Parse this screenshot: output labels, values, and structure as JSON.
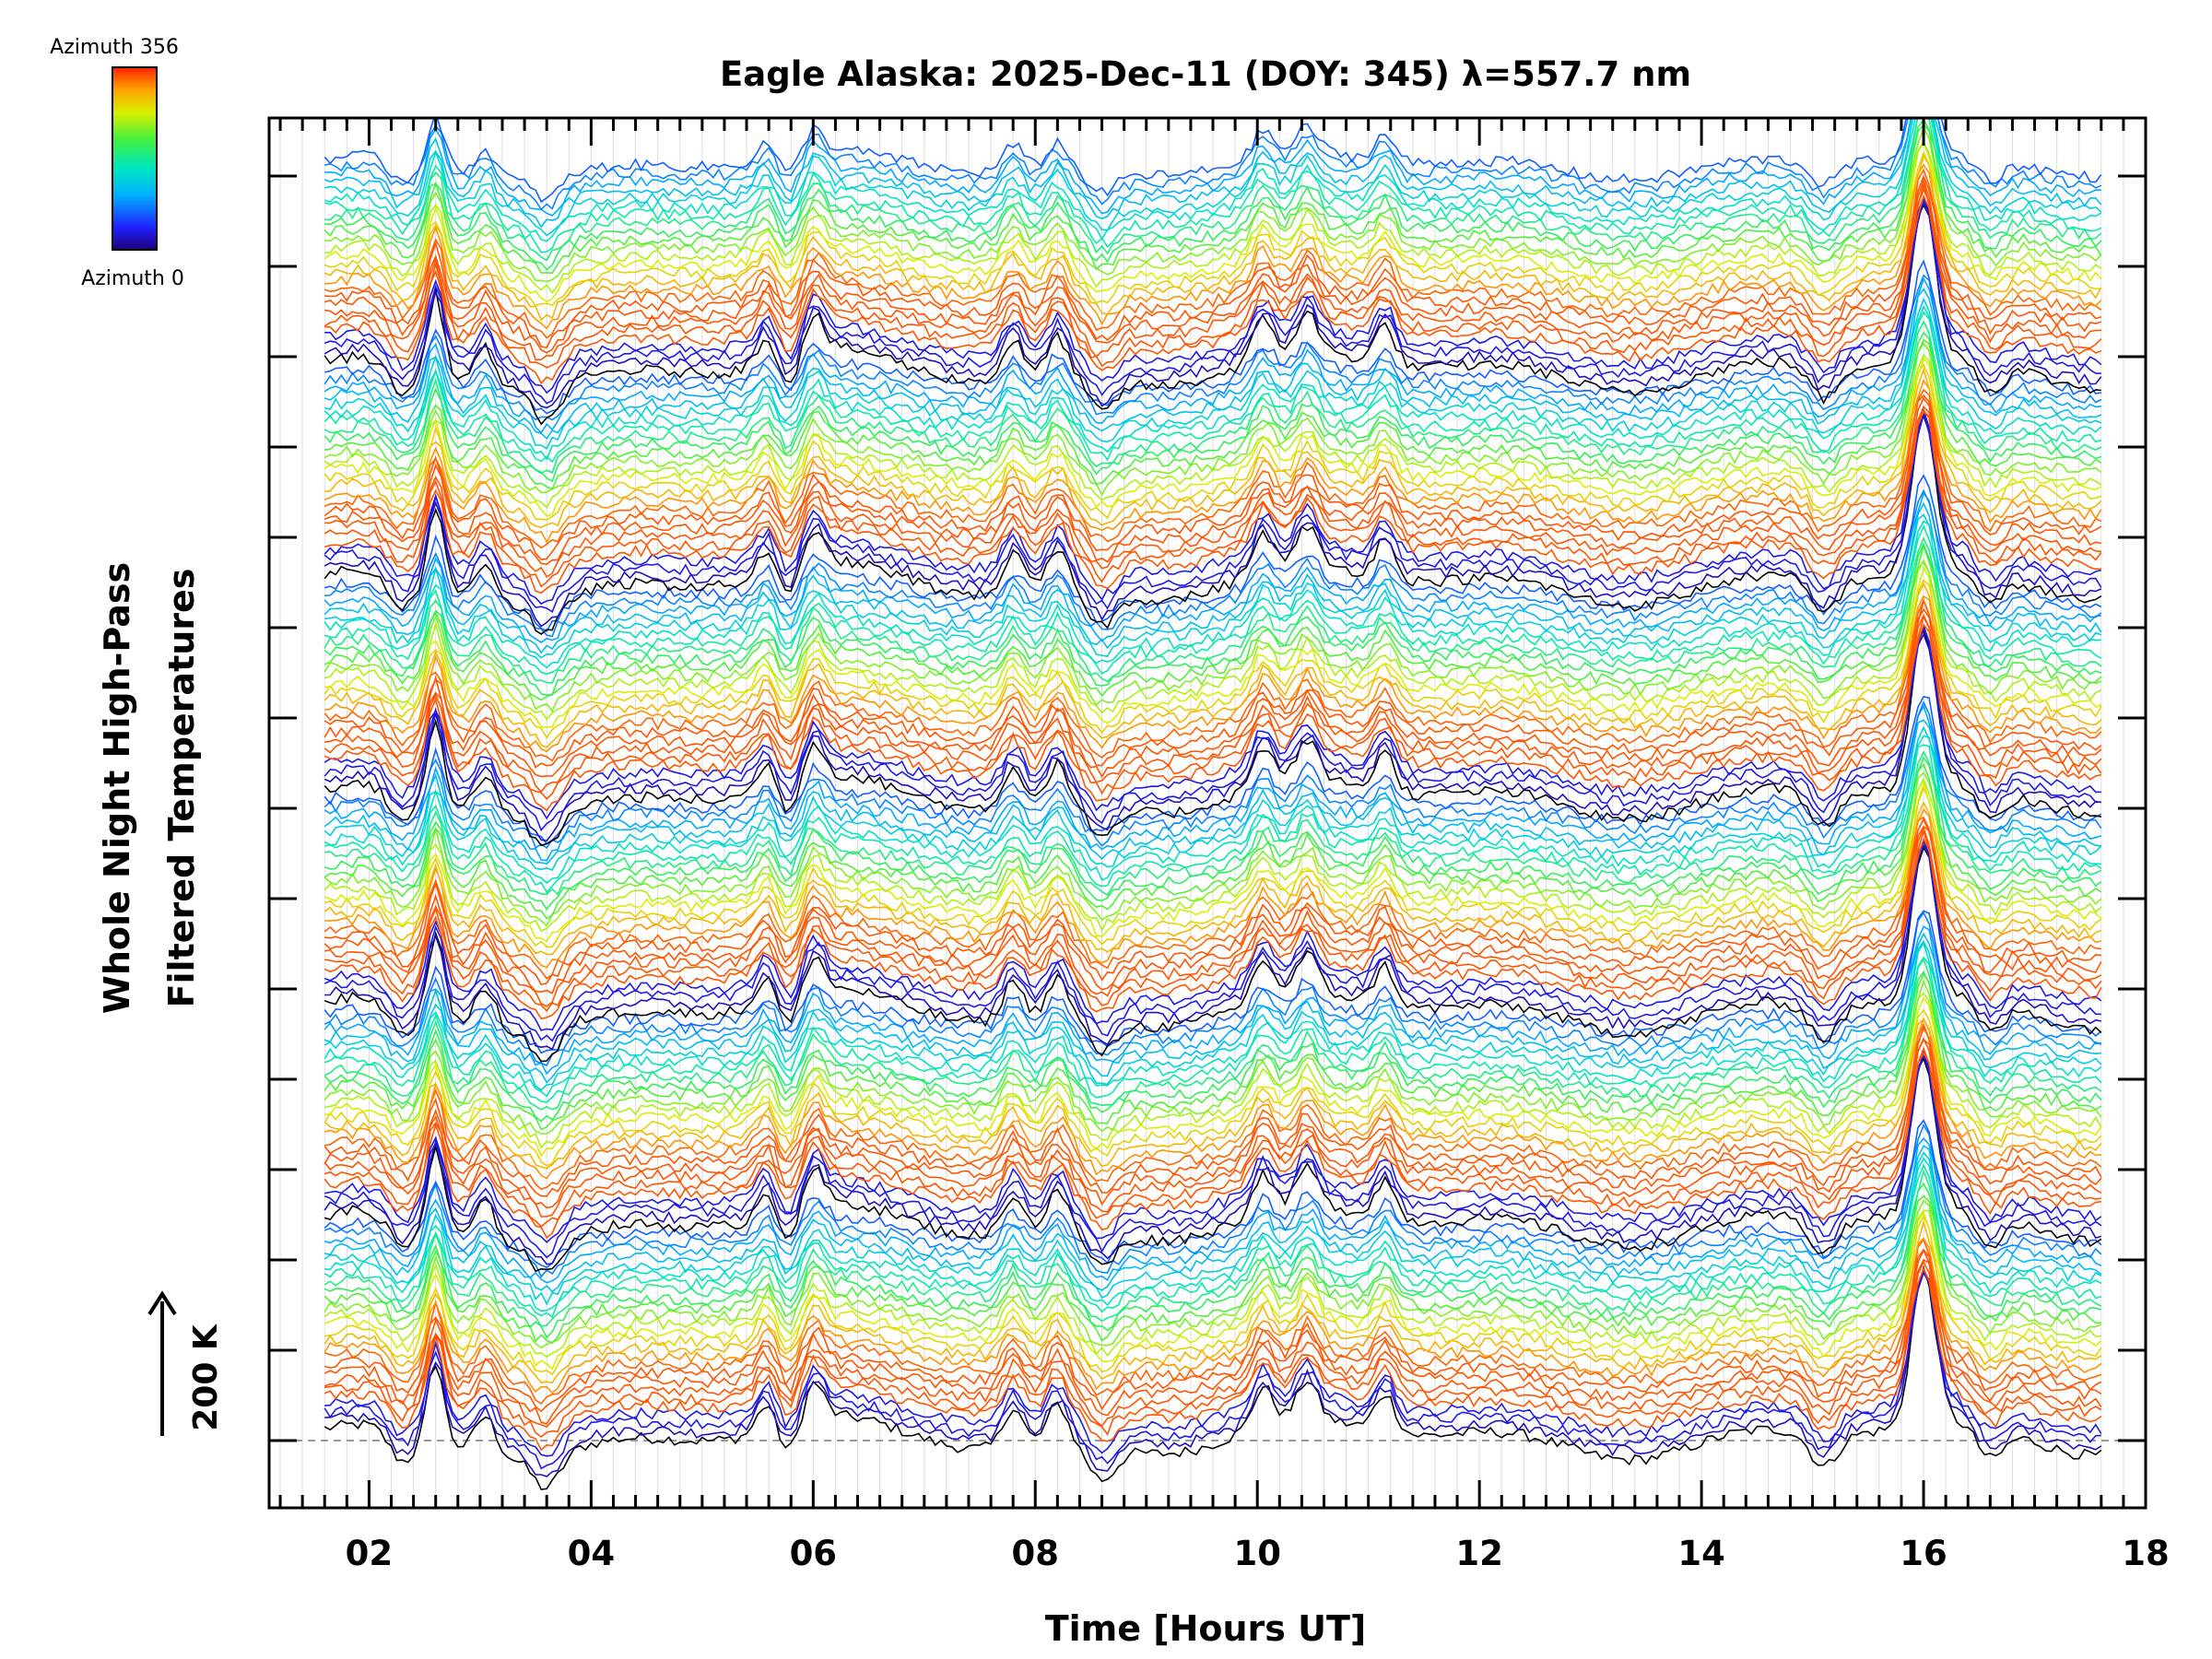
{
  "chart_data": {
    "type": "line",
    "title": "Eagle Alaska: 2025-Dec-11 (DOY: 345) λ=557.7 nm",
    "xlabel": "Time [Hours UT]",
    "ylabel_line1": "Whole Night High-Pass",
    "ylabel_line2": "Filtered Temperatures",
    "xlim": [
      1.1,
      18.0
    ],
    "x_ticks": [
      2,
      4,
      6,
      8,
      10,
      12,
      14,
      16,
      18
    ],
    "x_tick_labels": [
      "02",
      "04",
      "06",
      "08",
      "10",
      "12",
      "14",
      "16",
      "18"
    ],
    "time_range": [
      1.6,
      17.6
    ],
    "y_scale_text": "200 K",
    "colorbar": {
      "top_label": "Azimuth 356",
      "bottom_label": "Azimuth 0",
      "azimuth_min": 0,
      "azimuth_max": 356
    },
    "series_description": "Stacked keograms: one high-pass filtered temperature trace per azimuth bin, offset vertically, colored by azimuth",
    "stack_groups": 6,
    "traces_per_group": 26,
    "peak_times_hours": [
      2.6,
      3.05,
      5.6,
      6.0,
      7.8,
      8.2,
      10.05,
      10.45,
      11.15,
      15.95,
      16.05
    ],
    "trough_times_hours": [
      2.3,
      3.6,
      5.75,
      8.6,
      15.1,
      16.6
    ]
  }
}
